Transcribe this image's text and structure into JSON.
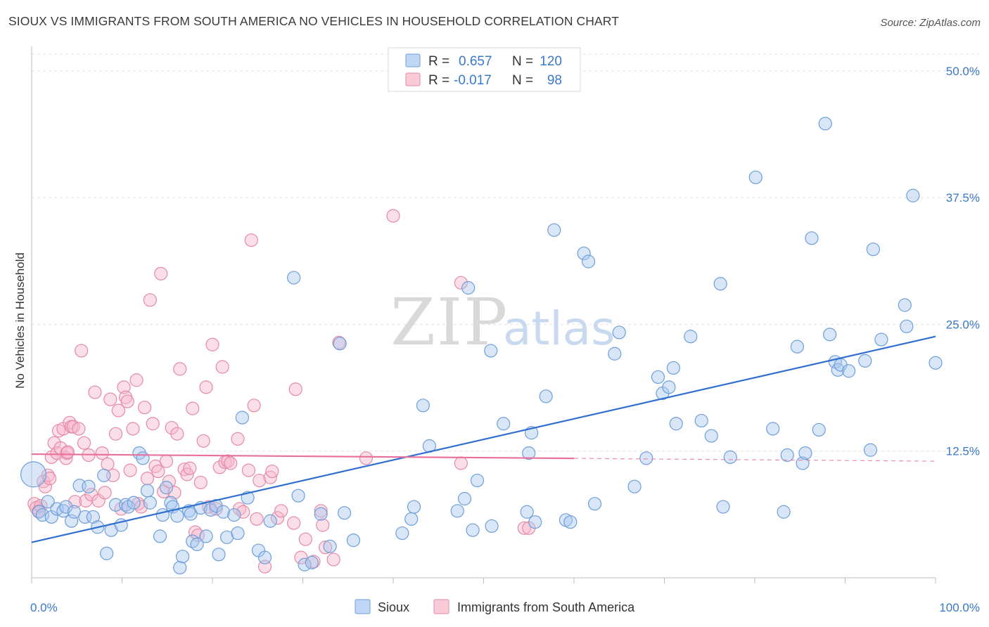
{
  "title": "SIOUX VS IMMIGRANTS FROM SOUTH AMERICA NO VEHICLES IN HOUSEHOLD CORRELATION CHART",
  "source": "Source: ZipAtlas.com",
  "watermark": {
    "zip": "ZIP",
    "atlas": "atlas"
  },
  "legend": {
    "r_label": "R =",
    "n_label": "N =",
    "rows": [
      {
        "r": "0.657",
        "n": "120",
        "color": "#a9c8f0",
        "stroke": "#6f9fd8"
      },
      {
        "r": "-0.017",
        "n": "98",
        "color": "#f7b9cc",
        "stroke": "#e58aa6"
      }
    ]
  },
  "bottom_legend": [
    {
      "label": "Sioux",
      "color": "#a9c8f0",
      "stroke": "#6f9fd8"
    },
    {
      "label": "Immigrants from South America",
      "color": "#f7b9cc",
      "stroke": "#e58aa6"
    }
  ],
  "chart_data": {
    "type": "scatter",
    "ylabel": "No Vehicles in Household",
    "xlim": [
      0,
      100
    ],
    "ylim": [
      0,
      52
    ],
    "x_ticks": [
      {
        "v": 0,
        "label": "0.0%"
      },
      {
        "v": 100,
        "label": "100.0%"
      }
    ],
    "y_ticks": [
      {
        "v": 12.5,
        "label": "12.5%"
      },
      {
        "v": 25,
        "label": "25.0%"
      },
      {
        "v": 37.5,
        "label": "37.5%"
      },
      {
        "v": 50,
        "label": "50.0%"
      }
    ],
    "series": [
      {
        "name": "Sioux",
        "color": "#a9c8f0",
        "stroke": "#6f9fd8",
        "line_color": "#2f6fcf",
        "trend": {
          "x0": 0,
          "y0": 3.5,
          "x1": 100,
          "y1": 23.8,
          "solid_until": 100
        },
        "points": [
          [
            0.2,
            10.2
          ],
          [
            0.8,
            6.5
          ],
          [
            1.2,
            6.2
          ],
          [
            1.8,
            7.5
          ],
          [
            2.2,
            6.0
          ],
          [
            2.8,
            6.8
          ],
          [
            3.5,
            6.6
          ],
          [
            3.8,
            7.0
          ],
          [
            4.4,
            5.6
          ],
          [
            4.7,
            6.5
          ],
          [
            5.3,
            9.1
          ],
          [
            5.9,
            6.0
          ],
          [
            6.3,
            9.0
          ],
          [
            6.8,
            6.0
          ],
          [
            7.3,
            5.0
          ],
          [
            8.0,
            10.1
          ],
          [
            8.3,
            2.4
          ],
          [
            8.8,
            4.7
          ],
          [
            9.3,
            7.2
          ],
          [
            9.9,
            5.2
          ],
          [
            10.4,
            7.2
          ],
          [
            10.7,
            7.0
          ],
          [
            11.3,
            7.4
          ],
          [
            11.9,
            12.3
          ],
          [
            12.3,
            11.8
          ],
          [
            12.8,
            8.6
          ],
          [
            13.1,
            7.4
          ],
          [
            14.2,
            4.1
          ],
          [
            14.5,
            6.2
          ],
          [
            14.9,
            8.9
          ],
          [
            15.4,
            7.4
          ],
          [
            15.6,
            7.0
          ],
          [
            16.1,
            6.1
          ],
          [
            16.4,
            1.0
          ],
          [
            16.7,
            2.1
          ],
          [
            17.4,
            6.6
          ],
          [
            17.6,
            6.3
          ],
          [
            17.8,
            3.6
          ],
          [
            18.3,
            3.3
          ],
          [
            18.7,
            6.9
          ],
          [
            19.3,
            4.1
          ],
          [
            19.8,
            6.7
          ],
          [
            20.4,
            7.1
          ],
          [
            20.7,
            2.3
          ],
          [
            21.2,
            6.5
          ],
          [
            21.6,
            4.0
          ],
          [
            22.4,
            6.2
          ],
          [
            22.8,
            4.4
          ],
          [
            23.3,
            15.8
          ],
          [
            23.9,
            7.9
          ],
          [
            25.1,
            2.7
          ],
          [
            25.8,
            2.0
          ],
          [
            26.4,
            5.6
          ],
          [
            29.0,
            29.6
          ],
          [
            29.5,
            8.1
          ],
          [
            30.2,
            1.3
          ],
          [
            31.0,
            1.5
          ],
          [
            32.0,
            6.3
          ],
          [
            33.0,
            3.1
          ],
          [
            34.1,
            23.1
          ],
          [
            34.6,
            6.4
          ],
          [
            35.6,
            3.7
          ],
          [
            41.0,
            4.4
          ],
          [
            42.0,
            5.8
          ],
          [
            42.3,
            7.0
          ],
          [
            43.3,
            17.0
          ],
          [
            44.0,
            13.0
          ],
          [
            47.1,
            6.6
          ],
          [
            47.9,
            7.8
          ],
          [
            48.3,
            28.6
          ],
          [
            48.8,
            4.7
          ],
          [
            49.3,
            9.6
          ],
          [
            50.8,
            22.4
          ],
          [
            50.9,
            5.1
          ],
          [
            52.2,
            15.2
          ],
          [
            54.8,
            6.5
          ],
          [
            55.0,
            12.3
          ],
          [
            55.3,
            14.3
          ],
          [
            55.7,
            5.5
          ],
          [
            56.9,
            17.9
          ],
          [
            57.8,
            34.3
          ],
          [
            59.1,
            5.7
          ],
          [
            59.6,
            5.5
          ],
          [
            61.1,
            32.0
          ],
          [
            61.6,
            31.2
          ],
          [
            62.3,
            7.3
          ],
          [
            64.5,
            22.1
          ],
          [
            65.0,
            24.2
          ],
          [
            66.7,
            9.0
          ],
          [
            68.0,
            11.8
          ],
          [
            69.3,
            19.8
          ],
          [
            69.8,
            18.2
          ],
          [
            70.5,
            18.8
          ],
          [
            71.0,
            20.7
          ],
          [
            71.3,
            15.2
          ],
          [
            72.9,
            23.8
          ],
          [
            74.1,
            15.5
          ],
          [
            75.2,
            14.0
          ],
          [
            76.2,
            29.0
          ],
          [
            76.5,
            7.0
          ],
          [
            77.3,
            11.9
          ],
          [
            80.1,
            39.5
          ],
          [
            82.0,
            14.7
          ],
          [
            83.2,
            6.5
          ],
          [
            83.6,
            12.1
          ],
          [
            84.7,
            22.8
          ],
          [
            85.3,
            11.3
          ],
          [
            85.6,
            12.3
          ],
          [
            86.3,
            33.5
          ],
          [
            87.1,
            14.6
          ],
          [
            87.8,
            44.8
          ],
          [
            88.3,
            24.0
          ],
          [
            88.9,
            21.3
          ],
          [
            89.2,
            20.5
          ],
          [
            89.5,
            21.0
          ],
          [
            90.4,
            20.4
          ],
          [
            92.2,
            21.4
          ],
          [
            92.8,
            12.6
          ],
          [
            93.1,
            32.4
          ],
          [
            94.0,
            23.5
          ],
          [
            96.6,
            26.9
          ],
          [
            96.8,
            24.8
          ],
          [
            97.5,
            37.7
          ],
          [
            100.0,
            21.2
          ]
        ]
      },
      {
        "name": "Immigrants from South America",
        "color": "#f7b9cc",
        "stroke": "#e58aa6",
        "line_color": "#e8709a",
        "trend": {
          "x0": 0,
          "y0": 12.2,
          "x1": 100,
          "y1": 11.5,
          "solid_until": 60
        },
        "points": [
          [
            0.3,
            7.3
          ],
          [
            0.5,
            6.9
          ],
          [
            0.8,
            6.6
          ],
          [
            1.0,
            7.1
          ],
          [
            1.3,
            9.5
          ],
          [
            1.5,
            9.0
          ],
          [
            1.8,
            10.1
          ],
          [
            2.0,
            9.8
          ],
          [
            2.2,
            11.9
          ],
          [
            2.5,
            13.3
          ],
          [
            2.8,
            12.3
          ],
          [
            3.0,
            14.5
          ],
          [
            3.2,
            12.8
          ],
          [
            3.5,
            14.7
          ],
          [
            3.8,
            11.8
          ],
          [
            3.9,
            12.3
          ],
          [
            4.0,
            12.4
          ],
          [
            4.2,
            15.3
          ],
          [
            4.4,
            14.9
          ],
          [
            4.6,
            14.9
          ],
          [
            4.8,
            7.5
          ],
          [
            5.2,
            14.7
          ],
          [
            5.5,
            22.4
          ],
          [
            5.8,
            13.3
          ],
          [
            6.0,
            7.6
          ],
          [
            6.3,
            12.1
          ],
          [
            6.6,
            8.2
          ],
          [
            7.0,
            18.3
          ],
          [
            7.4,
            7.6
          ],
          [
            7.8,
            12.3
          ],
          [
            8.1,
            8.4
          ],
          [
            8.4,
            11.2
          ],
          [
            8.7,
            17.6
          ],
          [
            9.0,
            10.1
          ],
          [
            9.3,
            14.2
          ],
          [
            9.6,
            16.5
          ],
          [
            9.9,
            6.8
          ],
          [
            10.2,
            18.8
          ],
          [
            10.4,
            17.8
          ],
          [
            10.6,
            17.4
          ],
          [
            10.9,
            10.6
          ],
          [
            11.2,
            14.7
          ],
          [
            11.6,
            19.5
          ],
          [
            11.8,
            7.3
          ],
          [
            12.1,
            7.0
          ],
          [
            12.5,
            16.8
          ],
          [
            12.8,
            9.8
          ],
          [
            13.1,
            27.4
          ],
          [
            13.4,
            15.2
          ],
          [
            13.7,
            11.0
          ],
          [
            14.0,
            10.5
          ],
          [
            14.3,
            30.0
          ],
          [
            14.6,
            8.5
          ],
          [
            14.9,
            11.5
          ],
          [
            15.2,
            9.5
          ],
          [
            15.5,
            14.8
          ],
          [
            15.8,
            8.4
          ],
          [
            16.1,
            14.2
          ],
          [
            16.4,
            20.6
          ],
          [
            16.9,
            10.7
          ],
          [
            17.2,
            10.2
          ],
          [
            17.5,
            10.8
          ],
          [
            17.8,
            16.7
          ],
          [
            18.1,
            4.5
          ],
          [
            18.4,
            4.2
          ],
          [
            18.7,
            9.4
          ],
          [
            19.0,
            13.5
          ],
          [
            19.3,
            18.8
          ],
          [
            19.6,
            7.0
          ],
          [
            20.0,
            23.0
          ],
          [
            20.4,
            6.8
          ],
          [
            20.8,
            10.9
          ],
          [
            21.1,
            20.8
          ],
          [
            21.4,
            11.4
          ],
          [
            21.7,
            11.5
          ],
          [
            22.0,
            11.3
          ],
          [
            22.8,
            13.7
          ],
          [
            23.0,
            6.8
          ],
          [
            23.4,
            6.5
          ],
          [
            24.0,
            10.6
          ],
          [
            24.3,
            33.3
          ],
          [
            24.6,
            17.0
          ],
          [
            24.9,
            5.8
          ],
          [
            25.2,
            9.6
          ],
          [
            25.8,
            1.1
          ],
          [
            26.4,
            9.9
          ],
          [
            26.6,
            10.5
          ],
          [
            27.2,
            5.9
          ],
          [
            27.6,
            6.6
          ],
          [
            29.0,
            5.4
          ],
          [
            29.2,
            18.6
          ],
          [
            29.8,
            2.0
          ],
          [
            30.3,
            3.8
          ],
          [
            31.2,
            1.6
          ],
          [
            32.0,
            6.6
          ],
          [
            32.2,
            5.2
          ],
          [
            32.5,
            3.0
          ],
          [
            33.4,
            1.8
          ],
          [
            34.0,
            23.2
          ],
          [
            37.0,
            11.8
          ],
          [
            40.0,
            35.7
          ],
          [
            47.5,
            29.1
          ],
          [
            47.5,
            11.3
          ],
          [
            54.5,
            4.9
          ],
          [
            55.0,
            4.9
          ]
        ]
      }
    ]
  }
}
